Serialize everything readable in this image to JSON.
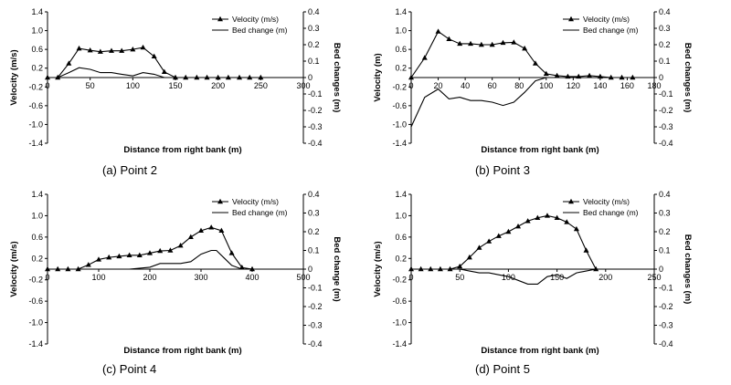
{
  "panels": [
    {
      "caption": "(a)  Point 2",
      "legend": {
        "velocity": "Velocity (m/s)",
        "bed": "Bed change (m)"
      },
      "chart_data": {
        "type": "line",
        "xlabel": "Distance from right bank (m)",
        "ylabel": "Velocity (m/s)",
        "y2label": "Bed changes (m)",
        "xlim": [
          0,
          300
        ],
        "xticks": [
          0,
          50,
          100,
          150,
          200,
          250,
          300
        ],
        "ylim": [
          -1.4,
          1.4
        ],
        "yticks": [
          -1.4,
          -1.0,
          -0.6,
          -0.2,
          0.2,
          0.6,
          1.0,
          1.4
        ],
        "y2lim": [
          -0.4,
          0.4
        ],
        "y2ticks": [
          -0.4,
          -0.3,
          -0.2,
          -0.1,
          0,
          0.1,
          0.2,
          0.3,
          0.4
        ],
        "xtick_labels": [
          "0",
          "50",
          "100",
          "150",
          "200",
          "250",
          "300"
        ],
        "ytick_labels": [
          "-1.4",
          "-1.0",
          "-0.6",
          "-0.2",
          "0.2",
          "0.6",
          "1.0",
          "1.4"
        ],
        "y2tick_labels": [
          "-0.4",
          "-0.3",
          "-0.2",
          "-0.1",
          "0",
          "0.1",
          "0.2",
          "0.3",
          "0.4"
        ],
        "series": [
          {
            "name": "Velocity (m/s)",
            "axis": "left",
            "marker": "triangle",
            "x": [
              0,
              12,
              25,
              37,
              50,
              62,
              75,
              87,
              100,
              112,
              125,
              137,
              150,
              162,
              175,
              187,
              200,
              212,
              225,
              237,
              250
            ],
            "y": [
              0,
              0,
              0.3,
              0.62,
              0.58,
              0.55,
              0.57,
              0.57,
              0.6,
              0.64,
              0.45,
              0.12,
              0,
              0,
              0,
              0,
              0,
              0,
              0,
              0,
              0
            ]
          },
          {
            "name": "Bed change (m)",
            "axis": "right",
            "marker": "none",
            "x": [
              0,
              12,
              25,
              37,
              50,
              62,
              75,
              87,
              100,
              112,
              125,
              137,
              150,
              250
            ],
            "y": [
              0,
              0,
              0.03,
              0.06,
              0.05,
              0.03,
              0.03,
              0.02,
              0.01,
              0.03,
              0.02,
              0,
              0,
              0
            ]
          }
        ]
      }
    },
    {
      "caption": "(b)  Point 3",
      "legend": {
        "velocity": "Velocity (m/s)",
        "bed": "Bed change (m)"
      },
      "chart_data": {
        "type": "line",
        "xlabel": "Distance from right bank (m)",
        "ylabel": "Velocity (m)",
        "y2label": "Bed changes (m)",
        "xlim": [
          0,
          180
        ],
        "xticks": [
          0,
          20,
          40,
          60,
          80,
          100,
          120,
          140,
          160,
          180
        ],
        "ylim": [
          -1.4,
          1.4
        ],
        "yticks": [
          -1.4,
          -1.0,
          -0.6,
          -0.2,
          0.2,
          0.6,
          1.0,
          1.4
        ],
        "y2lim": [
          -0.4,
          0.4
        ],
        "y2ticks": [
          -0.4,
          -0.3,
          -0.2,
          -0.1,
          0,
          0.1,
          0.2,
          0.3,
          0.4
        ],
        "xtick_labels": [
          "0",
          "20",
          "40",
          "60",
          "80",
          "100",
          "120",
          "140",
          "160",
          "180"
        ],
        "ytick_labels": [
          "-1.4",
          "-1.0",
          "-0.6",
          "-0.2",
          "0.2",
          "0.6",
          "1.0",
          "1.4"
        ],
        "y2tick_labels": [
          "-0.4",
          "-0.3",
          "-0.2",
          "-0.1",
          "0",
          "0.1",
          "0.2",
          "0.3",
          "0.4"
        ],
        "series": [
          {
            "name": "Velocity (m/s)",
            "axis": "left",
            "marker": "triangle",
            "x": [
              0,
              10,
              20,
              28,
              36,
              44,
              52,
              60,
              68,
              76,
              84,
              92,
              100,
              108,
              116,
              124,
              132,
              140,
              148,
              156,
              164
            ],
            "y": [
              0,
              0.42,
              0.98,
              0.82,
              0.72,
              0.72,
              0.7,
              0.7,
              0.74,
              0.75,
              0.62,
              0.3,
              0.08,
              0.04,
              0.02,
              0.02,
              0.04,
              0.02,
              0,
              0,
              0
            ]
          },
          {
            "name": "Bed change (m)",
            "axis": "right",
            "marker": "none",
            "x": [
              0,
              10,
              20,
              28,
              36,
              44,
              52,
              60,
              68,
              76,
              84,
              92,
              100,
              108,
              116,
              124,
              132,
              140,
              148,
              160
            ],
            "y": [
              -0.3,
              -0.12,
              -0.07,
              -0.13,
              -0.12,
              -0.14,
              -0.14,
              -0.15,
              -0.17,
              -0.15,
              -0.09,
              -0.02,
              0,
              0,
              0,
              0,
              0,
              0,
              0,
              0
            ]
          }
        ]
      }
    },
    {
      "caption": "(c)  Point 4",
      "legend": {
        "velocity": "Velocity (m/s)",
        "bed": "Bed change (m)"
      },
      "chart_data": {
        "type": "line",
        "xlabel": "Distance from right bank (m)",
        "ylabel": "Velocity (m/s)",
        "y2label": "Bed change (m)",
        "xlim": [
          0,
          500
        ],
        "xticks": [
          0,
          100,
          200,
          300,
          400,
          500
        ],
        "ylim": [
          -1.4,
          1.4
        ],
        "yticks": [
          -1.4,
          -1.0,
          -0.6,
          -0.2,
          0.2,
          0.6,
          1.0,
          1.4
        ],
        "y2lim": [
          -0.4,
          0.4
        ],
        "y2ticks": [
          -0.4,
          -0.3,
          -0.2,
          -0.1,
          0,
          0.1,
          0.2,
          0.3,
          0.4
        ],
        "xtick_labels": [
          "0",
          "100",
          "200",
          "300",
          "400",
          "500"
        ],
        "ytick_labels": [
          "-1.4",
          "-1.0",
          "-0.6",
          "-0.2",
          "0.2",
          "0.6",
          "1.0",
          "1.4"
        ],
        "y2tick_labels": [
          "-0.4",
          "-0.3",
          "-0.2",
          "-0.1",
          "0",
          "0.1",
          "0.2",
          "0.3",
          "0.4"
        ],
        "series": [
          {
            "name": "Velocity (m/s)",
            "axis": "left",
            "marker": "triangle",
            "x": [
              0,
              20,
              40,
              60,
              80,
              100,
              120,
              140,
              160,
              180,
              200,
              220,
              240,
              260,
              280,
              300,
              320,
              340,
              360,
              380,
              400
            ],
            "y": [
              0,
              0,
              0,
              0,
              0.08,
              0.18,
              0.22,
              0.24,
              0.26,
              0.26,
              0.3,
              0.34,
              0.35,
              0.44,
              0.6,
              0.72,
              0.78,
              0.72,
              0.3,
              0.03,
              0
            ]
          },
          {
            "name": "Bed change (m)",
            "axis": "right",
            "marker": "none",
            "x": [
              0,
              100,
              160,
              200,
              220,
              240,
              260,
              280,
              300,
              320,
              330,
              345,
              360,
              380,
              400
            ],
            "y": [
              0,
              0,
              0,
              0.01,
              0.03,
              0.03,
              0.03,
              0.04,
              0.08,
              0.1,
              0.1,
              0.06,
              0.02,
              0,
              0
            ]
          }
        ]
      }
    },
    {
      "caption": "(d)  Point 5",
      "legend": {
        "velocity": "Velocity (m/s)",
        "bed": "Bed change (m)"
      },
      "chart_data": {
        "type": "line",
        "xlabel": "Distance from right bank (m)",
        "ylabel": "Velocity (m/s)",
        "y2label": "Bed changes (m)",
        "xlim": [
          0,
          250
        ],
        "xticks": [
          0,
          50,
          100,
          150,
          200,
          250
        ],
        "ylim": [
          -1.4,
          1.4
        ],
        "yticks": [
          -1.4,
          -1.0,
          -0.6,
          -0.2,
          0.2,
          0.6,
          1.0,
          1.4
        ],
        "y2lim": [
          -0.4,
          0.4
        ],
        "y2ticks": [
          -0.4,
          -0.3,
          -0.2,
          -0.1,
          0,
          0.1,
          0.2,
          0.3,
          0.4
        ],
        "xtick_labels": [
          "0",
          "50",
          "100",
          "150",
          "200",
          "250"
        ],
        "ytick_labels": [
          "-1.4",
          "-1.0",
          "-0.6",
          "-0.2",
          "0.2",
          "0.6",
          "1.0",
          "1.4"
        ],
        "y2tick_labels": [
          "-0.4",
          "-0.3",
          "-0.2",
          "-0.1",
          "0",
          "0.1",
          "0.2",
          "0.3",
          "0.4"
        ],
        "series": [
          {
            "name": "Velocity (m/s)",
            "axis": "left",
            "marker": "triangle",
            "x": [
              0,
              10,
              20,
              30,
              40,
              50,
              60,
              70,
              80,
              90,
              100,
              110,
              120,
              130,
              140,
              150,
              160,
              170,
              180,
              190
            ],
            "y": [
              0,
              0,
              0,
              0,
              0,
              0.05,
              0.22,
              0.4,
              0.52,
              0.62,
              0.7,
              0.8,
              0.9,
              0.96,
              1.0,
              0.96,
              0.88,
              0.75,
              0.35,
              0
            ]
          },
          {
            "name": "Bed change (m)",
            "axis": "right",
            "marker": "none",
            "x": [
              0,
              40,
              50,
              60,
              70,
              80,
              90,
              100,
              110,
              120,
              130,
              140,
              150,
              160,
              170,
              180,
              190
            ],
            "y": [
              0,
              0,
              0,
              -0.01,
              -0.02,
              -0.02,
              -0.03,
              -0.04,
              -0.06,
              -0.08,
              -0.08,
              -0.04,
              -0.03,
              -0.05,
              -0.02,
              -0.01,
              0
            ]
          }
        ]
      }
    }
  ]
}
